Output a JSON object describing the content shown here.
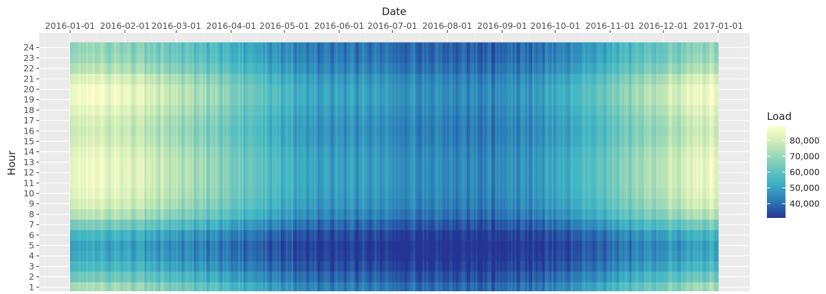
{
  "chart_data": {
    "type": "heatmap",
    "title": "",
    "xlabel": "Date",
    "ylabel": "Hour",
    "x_axis_position": "top",
    "x_tick_labels": [
      "2016-01-01",
      "2016-02-01",
      "2016-03-01",
      "2016-04-01",
      "2016-05-01",
      "2016-06-01",
      "2016-07-01",
      "2016-08-01",
      "2016-09-01",
      "2016-10-01",
      "2016-11-01",
      "2016-12-01",
      "2017-01-01"
    ],
    "x_range": [
      "2016-01-01",
      "2016-12-31"
    ],
    "y_tick_labels": [
      "1",
      "2",
      "3",
      "4",
      "5",
      "6",
      "7",
      "8",
      "9",
      "10",
      "11",
      "12",
      "13",
      "14",
      "15",
      "16",
      "17",
      "18",
      "19",
      "20",
      "21",
      "22",
      "23",
      "24"
    ],
    "hours": [
      1,
      2,
      3,
      4,
      5,
      6,
      7,
      8,
      9,
      10,
      11,
      12,
      13,
      14,
      15,
      16,
      17,
      18,
      19,
      20,
      21,
      22,
      23,
      24
    ],
    "months": [
      "2016-01",
      "2016-02",
      "2016-03",
      "2016-04",
      "2016-05",
      "2016-06",
      "2016-07",
      "2016-08",
      "2016-09",
      "2016-10",
      "2016-11",
      "2016-12"
    ],
    "approx_monthly_mean_load": [
      76000,
      71000,
      63000,
      54000,
      46000,
      45000,
      42000,
      40000,
      43000,
      51000,
      62000,
      74000
    ],
    "approx_hourly_mean_load": [
      58000,
      52000,
      47000,
      44000,
      43000,
      46000,
      53000,
      60000,
      64000,
      66000,
      67000,
      67000,
      67000,
      66000,
      64000,
      63000,
      64000,
      66000,
      68000,
      68000,
      65000,
      60000,
      57000,
      56000
    ],
    "grid": true,
    "legend": {
      "title": "Load",
      "position": "right",
      "ticks": [
        {
          "value": 40000,
          "label": "40,000"
        },
        {
          "value": 50000,
          "label": "50,000"
        },
        {
          "value": 60000,
          "label": "60,000"
        },
        {
          "value": 70000,
          "label": "70,000"
        },
        {
          "value": 80000,
          "label": "80,000"
        }
      ],
      "range": [
        31000,
        89000
      ],
      "colors": [
        "#253494",
        "#2c7fb8",
        "#41b6c4",
        "#7fcdbb",
        "#c7e9b4",
        "#ffffcc"
      ]
    }
  }
}
